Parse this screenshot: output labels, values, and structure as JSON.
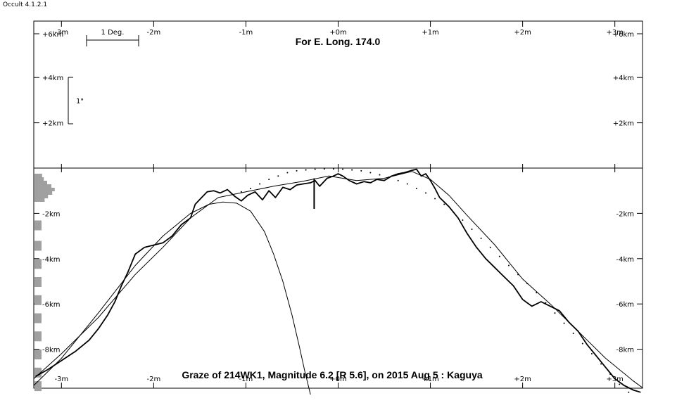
{
  "app": {
    "title": "Occult 4.1.2.1"
  },
  "chart_data": {
    "type": "line",
    "title": "For E. Long. 174.0",
    "caption": "Graze of  214WK1,  Magnitude 6.2 [R 5.6],  on 2015 Aug  5  :  Kaguya",
    "scale_bars": {
      "horizontal": "1 Deg.",
      "vertical": "1\""
    },
    "x_tick_labels": [
      "-3m",
      "-2m",
      "-1m",
      "+0m",
      "+1m",
      "+2m",
      "+3m"
    ],
    "x_ticks": [
      -3,
      -2,
      -1,
      0,
      1,
      2,
      3
    ],
    "xlim": [
      -3.3,
      3.3
    ],
    "top_y_tick_labels": [
      "+6km",
      "+4km",
      "+2km"
    ],
    "top_y_ticks": [
      6,
      4,
      2
    ],
    "bottom_y_tick_labels": [
      "-2km",
      "-4km",
      "-6km",
      "-8km"
    ],
    "bottom_y_ticks": [
      -2,
      -4,
      -6,
      -8
    ],
    "ylim_bottom": [
      -9.8,
      0
    ],
    "series": [
      {
        "kind": "kaguya-profile",
        "x": [
          -3.28,
          -3.15,
          -3.0,
          -2.85,
          -2.7,
          -2.6,
          -2.5,
          -2.42,
          -2.35,
          -2.28,
          -2.2,
          -2.1,
          -2.0,
          -1.9,
          -1.8,
          -1.7,
          -1.6,
          -1.55,
          -1.48,
          -1.42,
          -1.35,
          -1.28,
          -1.2,
          -1.12,
          -1.05,
          -0.98,
          -0.9,
          -0.82,
          -0.75,
          -0.68,
          -0.6,
          -0.52,
          -0.45,
          -0.38,
          -0.3,
          -0.25,
          -0.2,
          -0.12,
          -0.05,
          0.0,
          0.05,
          0.12,
          0.2,
          0.28,
          0.35,
          0.42,
          0.5,
          0.58,
          0.65,
          0.72,
          0.8,
          0.85,
          0.9,
          0.95,
          1.0,
          1.05,
          1.1,
          1.2,
          1.3,
          1.4,
          1.5,
          1.6,
          1.7,
          1.8,
          1.9,
          2.0,
          2.1,
          2.2,
          2.3,
          2.4,
          2.5,
          2.6,
          2.7,
          2.8,
          2.9,
          3.0,
          3.1,
          3.2,
          3.28
        ],
        "y": [
          -9.2,
          -8.9,
          -8.5,
          -8.1,
          -7.6,
          -7.1,
          -6.5,
          -5.9,
          -5.2,
          -4.6,
          -3.8,
          -3.5,
          -3.4,
          -3.3,
          -3.0,
          -2.5,
          -2.2,
          -1.6,
          -1.3,
          -1.05,
          -1.0,
          -1.1,
          -0.95,
          -1.25,
          -1.45,
          -1.2,
          -1.05,
          -1.4,
          -1.0,
          -1.3,
          -0.85,
          -0.95,
          -0.75,
          -0.7,
          -0.65,
          -0.55,
          -0.8,
          -0.45,
          -0.35,
          -0.25,
          -0.35,
          -0.55,
          -0.7,
          -0.6,
          -0.65,
          -0.5,
          -0.55,
          -0.35,
          -0.25,
          -0.2,
          -0.1,
          -0.05,
          -0.35,
          -0.25,
          -0.55,
          -0.9,
          -1.3,
          -1.7,
          -2.2,
          -2.9,
          -3.5,
          -4.0,
          -4.4,
          -4.8,
          -5.2,
          -5.8,
          -6.1,
          -5.9,
          -6.1,
          -6.3,
          -6.8,
          -7.2,
          -7.8,
          -8.3,
          -8.8,
          -9.3,
          -9.6,
          -9.8,
          -9.9
        ]
      },
      {
        "kind": "smoothed-profile",
        "x": [
          -3.3,
          -3.0,
          -2.6,
          -2.2,
          -1.9,
          -1.6,
          -1.3,
          -1.0,
          -0.7,
          -0.4,
          -0.1,
          0.2,
          0.5,
          0.8,
          1.0,
          1.2,
          1.4,
          1.7,
          2.0,
          2.3,
          2.6,
          2.9,
          3.2,
          3.3
        ],
        "y": [
          -9.3,
          -8.2,
          -6.6,
          -4.7,
          -3.5,
          -2.2,
          -1.3,
          -1.05,
          -0.8,
          -0.6,
          -0.35,
          -0.55,
          -0.45,
          -0.15,
          -0.5,
          -1.2,
          -2.1,
          -3.4,
          -4.9,
          -6.0,
          -7.2,
          -8.4,
          -9.4,
          -9.7
        ]
      },
      {
        "kind": "limb-dots",
        "x": [
          -1.05,
          -0.95,
          -0.85,
          -0.75,
          -0.65,
          -0.55,
          -0.45,
          -0.35,
          -0.25,
          -0.15,
          -0.05,
          0.05,
          0.15,
          0.25,
          0.35,
          0.45,
          0.55,
          0.65,
          0.75,
          0.85,
          0.95,
          1.05,
          1.15,
          1.25,
          1.35,
          1.45,
          1.55,
          1.65,
          1.75,
          1.85,
          1.95,
          2.05,
          2.15,
          2.25,
          2.35,
          2.45,
          2.55,
          2.65,
          2.75,
          2.85,
          2.95,
          3.05,
          3.15
        ],
        "y": [
          -1.05,
          -0.9,
          -0.7,
          -0.5,
          -0.35,
          -0.2,
          -0.12,
          -0.08,
          -0.05,
          -0.04,
          -0.04,
          -0.05,
          -0.08,
          -0.12,
          -0.2,
          -0.3,
          -0.4,
          -0.55,
          -0.7,
          -0.9,
          -1.1,
          -1.35,
          -1.6,
          -1.95,
          -2.3,
          -2.7,
          -3.1,
          -3.5,
          -3.9,
          -4.3,
          -4.7,
          -5.1,
          -5.5,
          -5.95,
          -6.4,
          -6.85,
          -7.3,
          -7.75,
          -8.2,
          -8.65,
          -9.1,
          -9.55,
          -9.9
        ]
      },
      {
        "kind": "reference-arc",
        "x": [
          -3.3,
          -3.0,
          -2.6,
          -2.2,
          -1.9,
          -1.6,
          -1.4,
          -1.25,
          -1.1,
          -0.95,
          -0.8,
          -0.7,
          -0.6,
          -0.5,
          -0.42,
          -0.36,
          -0.3
        ],
        "y": [
          -9.6,
          -8.4,
          -6.4,
          -4.3,
          -3.0,
          -2.0,
          -1.6,
          -1.5,
          -1.55,
          -1.9,
          -2.8,
          -3.8,
          -5.0,
          -6.5,
          -7.9,
          -9.0,
          -10.0
        ]
      }
    ],
    "star_marker": {
      "x": -0.26,
      "y_top": -0.45,
      "y_bottom": -1.8
    },
    "histogram": {
      "top_bins": [
        0.9,
        1.1,
        1.5,
        2.0,
        2.4,
        2.1,
        1.6,
        1.2
      ],
      "lower_blocks": [
        -2.5,
        -3.4,
        -4.2,
        -5.0,
        -5.8,
        -6.6,
        -7.4,
        -8.2,
        -9.0,
        -9.6
      ]
    }
  }
}
